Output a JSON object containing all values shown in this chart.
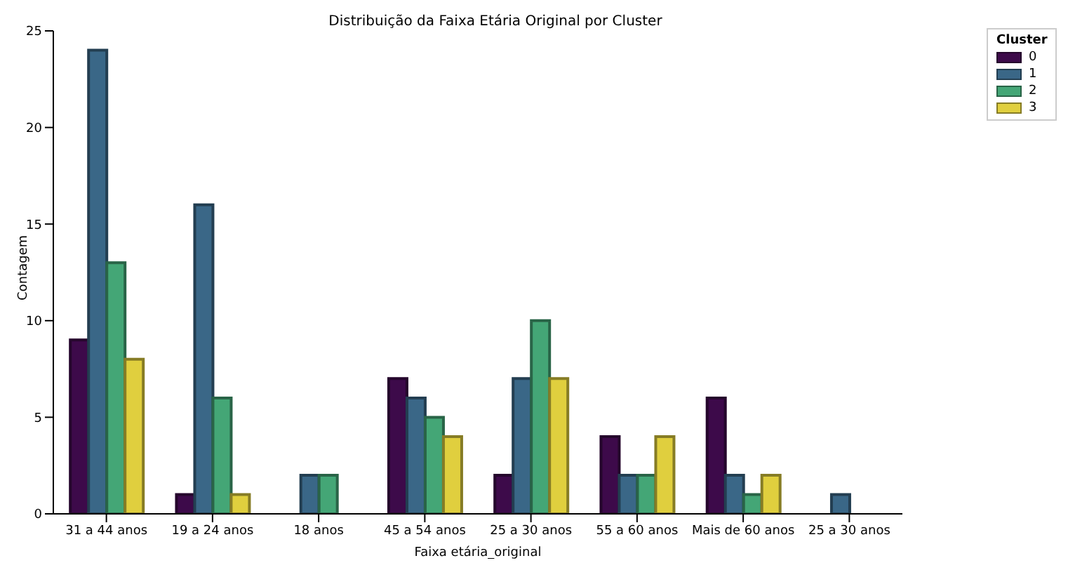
{
  "chart_data": {
    "type": "bar",
    "title": "Distribuição da Faixa Etária Original por Cluster",
    "xlabel": "Faixa etária_original",
    "ylabel": "Contagem",
    "legend_title": "Cluster",
    "categories": [
      "31  a 44 anos",
      "19 a 24 anos",
      "18 anos",
      "45 a 54 anos",
      "25 a 30 anos",
      "55 a 60 anos",
      "Mais de 60 anos",
      "25 a 30 anos"
    ],
    "series": [
      {
        "name": "0",
        "color": "#3d0a4a",
        "values": [
          9,
          1,
          0,
          7,
          2,
          4,
          6,
          0
        ]
      },
      {
        "name": "1",
        "color": "#3a6787",
        "values": [
          24,
          16,
          2,
          6,
          7,
          2,
          2,
          1
        ]
      },
      {
        "name": "2",
        "color": "#44a676",
        "values": [
          13,
          6,
          2,
          5,
          10,
          2,
          1,
          0
        ]
      },
      {
        "name": "3",
        "color": "#e0cf3e",
        "values": [
          8,
          1,
          0,
          4,
          7,
          4,
          2,
          0
        ]
      }
    ],
    "ylim": [
      0,
      25
    ],
    "yticks": [
      0,
      5,
      10,
      15,
      20,
      25
    ],
    "grid": false,
    "legend": "top right"
  }
}
